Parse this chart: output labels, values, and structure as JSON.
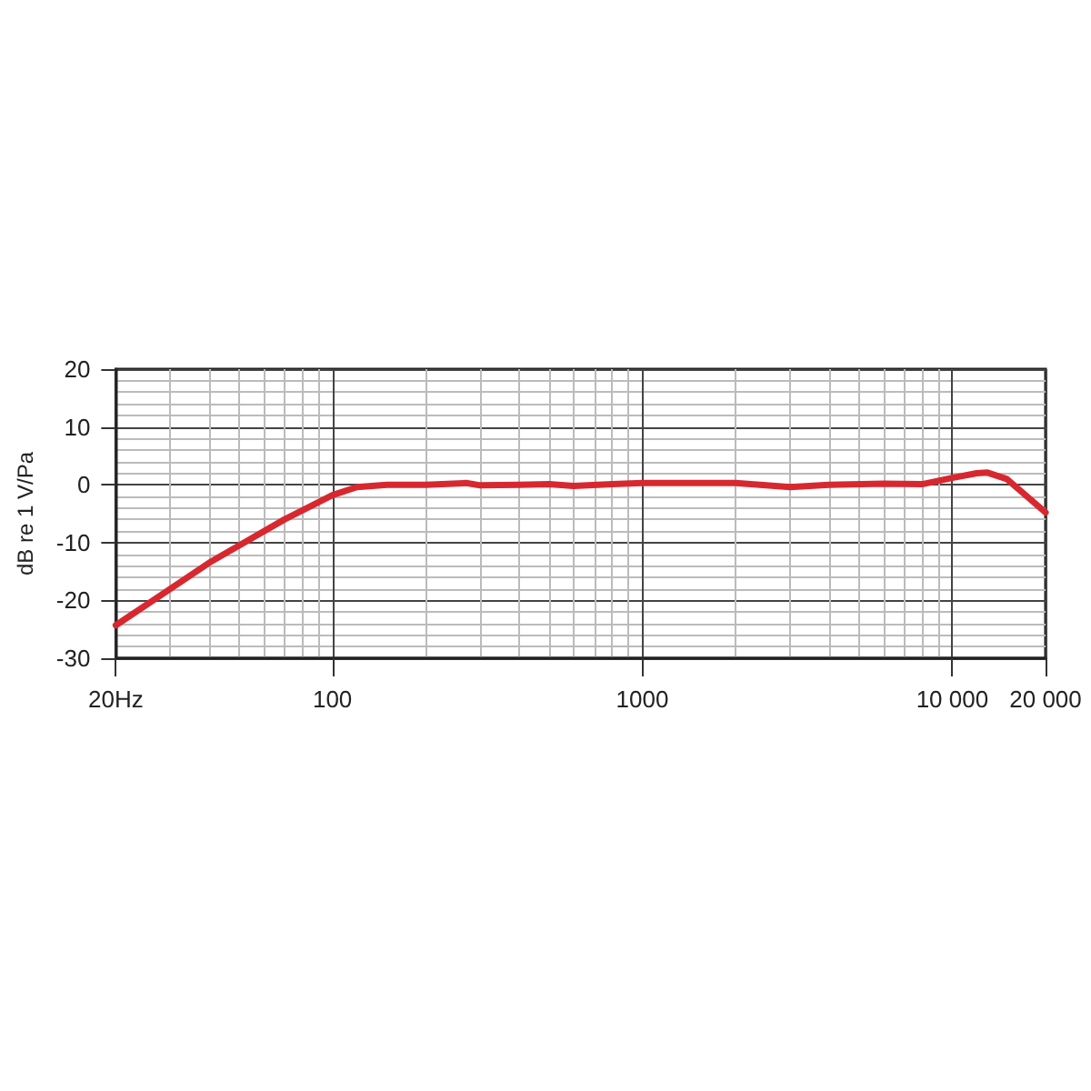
{
  "chart_data": {
    "type": "line",
    "ylabel": "dB re 1 V/Pa",
    "log": "x",
    "grid": true,
    "marker": "none",
    "line_style": "solid",
    "x": [
      20,
      30,
      40,
      50,
      70,
      100,
      120,
      150,
      200,
      270,
      300,
      400,
      500,
      600,
      800,
      1000,
      1500,
      2000,
      3000,
      4000,
      6000,
      8000,
      10000,
      12000,
      13000,
      15000,
      20000
    ],
    "series": [
      {
        "color": "#d8282f",
        "values": [
          -24.3,
          -18,
          -13.5,
          -10.5,
          -6,
          -1.8,
          -0.4,
          0,
          0,
          0.3,
          -0.1,
          0,
          0.1,
          -0.2,
          0.1,
          0.3,
          0.3,
          0.3,
          -0.4,
          0,
          0.2,
          0.1,
          1.2,
          2,
          2.1,
          1,
          -4.8
        ]
      }
    ],
    "xlim": [
      20,
      20000
    ],
    "xticks": [
      {
        "value": 20,
        "label": "20Hz"
      },
      100,
      1000,
      {
        "value": 10000,
        "label": "10 000"
      },
      {
        "value": 20000,
        "label": "20 000"
      }
    ],
    "ylim": [
      -30,
      20
    ],
    "yticks": [
      -30,
      -20,
      -10,
      0,
      10,
      20
    ]
  }
}
